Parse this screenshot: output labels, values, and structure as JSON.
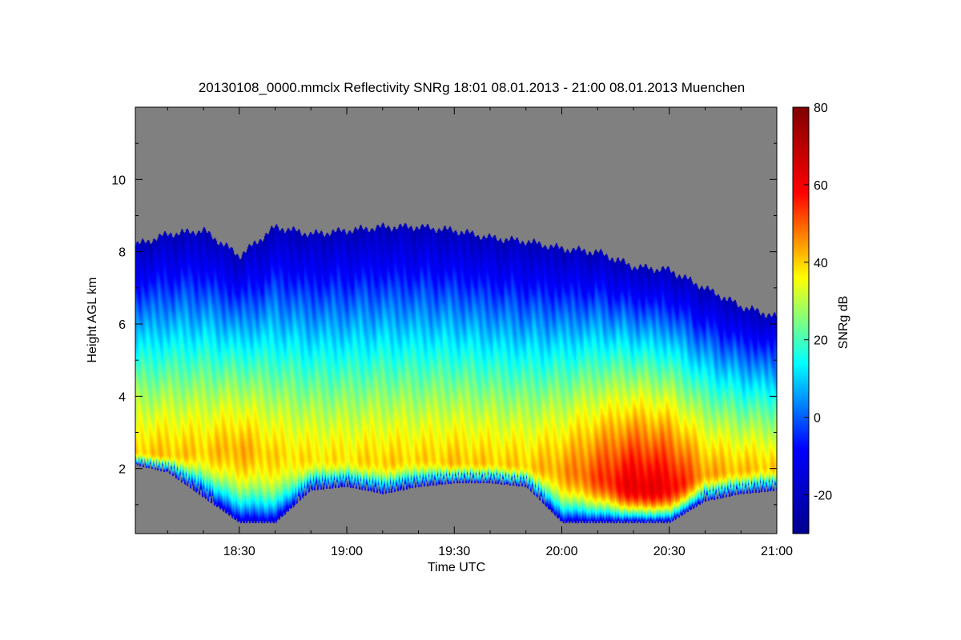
{
  "chart_data": {
    "type": "heatmap",
    "title": "20130108_0000.mmclx Reflectivity SNRg   18:01 08.01.2013 - 21:00 08.01.2013 Muenchen",
    "xlabel": "Time UTC",
    "ylabel": "Height AGL km",
    "colorbar_label": "SNRg dB",
    "x_tick_labels": [
      "18:30",
      "19:00",
      "19:30",
      "20:00",
      "20:30",
      "21:00"
    ],
    "x_tick_values_min": [
      30,
      60,
      90,
      120,
      150,
      180
    ],
    "xlim_min": [
      1,
      180
    ],
    "y_tick_values": [
      2,
      4,
      6,
      8,
      10
    ],
    "ylim": [
      0.2,
      12
    ],
    "colorbar_tick_values": [
      -20,
      0,
      20,
      40,
      60,
      80
    ],
    "colorbar_range": [
      -30,
      80
    ],
    "colormap": [
      "#00008f",
      "#0000ff",
      "#00ffff",
      "#ffff00",
      "#ff0000",
      "#800000"
    ],
    "no_signal_color": "#808080",
    "echo_profile": {
      "time_min": [
        1,
        10,
        20,
        30,
        40,
        50,
        60,
        70,
        80,
        90,
        100,
        110,
        120,
        130,
        140,
        150,
        160,
        170,
        180
      ],
      "echo_top_km": [
        8.2,
        8.5,
        8.6,
        7.9,
        8.7,
        8.5,
        8.6,
        8.7,
        8.7,
        8.6,
        8.4,
        8.3,
        8.1,
        8.0,
        7.6,
        7.5,
        7.0,
        6.5,
        6.2
      ],
      "echo_base_km": [
        2.1,
        1.9,
        1.2,
        0.5,
        0.5,
        1.4,
        1.5,
        1.3,
        1.5,
        1.6,
        1.6,
        1.5,
        0.5,
        0.5,
        0.5,
        0.5,
        1.1,
        1.3,
        1.4
      ],
      "peak_height_km": [
        2.5,
        2.4,
        2.5,
        2.6,
        2.4,
        2.3,
        2.3,
        2.2,
        2.3,
        2.2,
        2.2,
        2.1,
        2.0,
        1.8,
        1.5,
        1.5,
        1.9,
        2.0,
        2.1
      ],
      "peak_snr_db": [
        40,
        41,
        40,
        43,
        39,
        38,
        38,
        40,
        39,
        41,
        40,
        40,
        44,
        52,
        62,
        60,
        44,
        41,
        40
      ]
    }
  }
}
